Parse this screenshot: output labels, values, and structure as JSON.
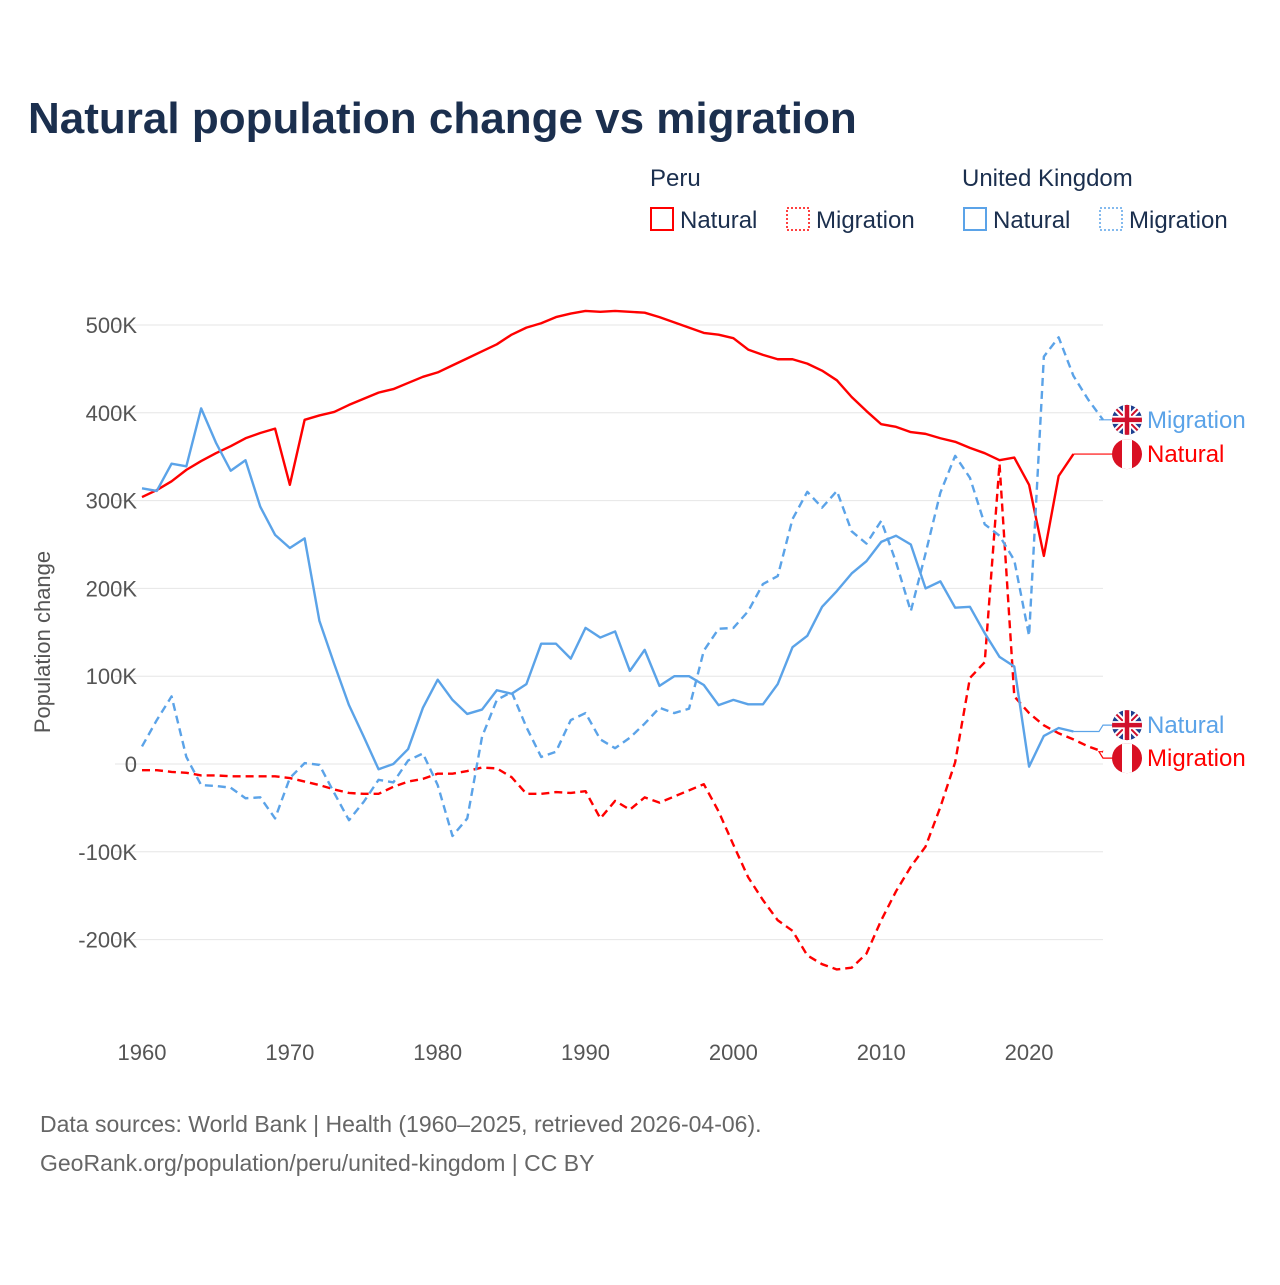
{
  "chart_data": {
    "type": "line",
    "title": "Natural population change vs migration",
    "xlabel": "",
    "ylabel": "Population change",
    "xlim": [
      1960,
      2025
    ],
    "ylim": [
      -270000,
      530000
    ],
    "x_ticks": [
      "1960",
      "1970",
      "1980",
      "1990",
      "2000",
      "2010",
      "2020"
    ],
    "y_ticks": [
      {
        "value": 500000,
        "label": "500K"
      },
      {
        "value": 400000,
        "label": "400K"
      },
      {
        "value": 300000,
        "label": "300K"
      },
      {
        "value": 200000,
        "label": "200K"
      },
      {
        "value": 100000,
        "label": "100K"
      },
      {
        "value": 0,
        "label": "0"
      },
      {
        "value": -100000,
        "label": "-100K"
      },
      {
        "value": -200000,
        "label": "-200K"
      }
    ],
    "grid": true,
    "legend": {
      "placement": "top-right",
      "groups": [
        {
          "country": "Peru",
          "items": [
            "Natural",
            "Migration"
          ]
        },
        {
          "country": "United Kingdom",
          "items": [
            "Natural",
            "Migration"
          ]
        }
      ]
    },
    "series": [
      {
        "name": "Natural",
        "country": "Peru",
        "style": "solid",
        "color": "#ff0000",
        "flag": "peru-flag",
        "start_year": 1960,
        "values": [
          304,
          312,
          322,
          335,
          345,
          354,
          362,
          371,
          377,
          382,
          318,
          392,
          397,
          401,
          409,
          416,
          423,
          427,
          434,
          441,
          446,
          454,
          462,
          470,
          478,
          489,
          497,
          502,
          509,
          513,
          516,
          515,
          516,
          515,
          514,
          509,
          503,
          497,
          491,
          489,
          485,
          472,
          466,
          461,
          461,
          456,
          448,
          437,
          418,
          402,
          387,
          384,
          378,
          376,
          371,
          367,
          360,
          354,
          346,
          349,
          318,
          237,
          328,
          353
        ]
      },
      {
        "name": "Migration",
        "country": "Peru",
        "style": "dashed",
        "color": "#ff0000",
        "flag": "peru-flag",
        "start_year": 1960,
        "values": [
          -7,
          -7,
          -9,
          -10,
          -13,
          -13,
          -14,
          -14,
          -14,
          -14,
          -16,
          -20,
          -24,
          -29,
          -33,
          -34,
          -34,
          -26,
          -20,
          -17,
          -11,
          -11,
          -8,
          -4,
          -5,
          -15,
          -34,
          -34,
          -32,
          -33,
          -31,
          -62,
          -42,
          -52,
          -38,
          -44,
          -37,
          -30,
          -23,
          -54,
          -92,
          -129,
          -155,
          -178,
          -190,
          -218,
          -228,
          -234,
          -232,
          -216,
          -178,
          -145,
          -117,
          -94,
          -49,
          2,
          98,
          116,
          342,
          77,
          58,
          44,
          35,
          28,
          20,
          14
        ]
      },
      {
        "name": "Natural",
        "country": "United Kingdom",
        "style": "solid",
        "color": "#5ba3e8",
        "flag": "uk-flag",
        "start_year": 1960,
        "values": [
          314,
          311,
          342,
          339,
          405,
          366,
          334,
          346,
          293,
          261,
          246,
          257,
          163,
          114,
          67,
          31,
          -6,
          0,
          17,
          64,
          96,
          73,
          57,
          62,
          84,
          80,
          91,
          137,
          137,
          120,
          155,
          144,
          151,
          106,
          130,
          89,
          100,
          100,
          90,
          67,
          73,
          68,
          68,
          91,
          133,
          146,
          179,
          197,
          217,
          231,
          253,
          260,
          250,
          200,
          208,
          178,
          179,
          149,
          122,
          111,
          -3,
          32,
          41,
          37
        ]
      },
      {
        "name": "Migration",
        "country": "United Kingdom",
        "style": "dashed",
        "color": "#5ba3e8",
        "flag": "uk-flag",
        "start_year": 1960,
        "values": [
          20,
          50,
          77,
          8,
          -24,
          -25,
          -27,
          -39,
          -38,
          -62,
          -16,
          1,
          -1,
          -33,
          -64,
          -43,
          -18,
          -21,
          4,
          12,
          -24,
          -82,
          -62,
          31,
          73,
          82,
          42,
          8,
          14,
          50,
          58,
          28,
          18,
          30,
          46,
          64,
          58,
          63,
          129,
          154,
          155,
          174,
          205,
          214,
          279,
          310,
          292,
          311,
          265,
          251,
          277,
          230,
          174,
          240,
          309,
          351,
          326,
          273,
          260,
          232,
          146,
          464,
          486,
          442,
          415,
          392
        ]
      }
    ],
    "value_unit": "thousands"
  },
  "source_lines": [
    "Data sources: World Bank | Health (1960–2025, retrieved 2026-04-06).",
    "GeoRank.org/population/peru/united-kingdom | CC BY"
  ]
}
